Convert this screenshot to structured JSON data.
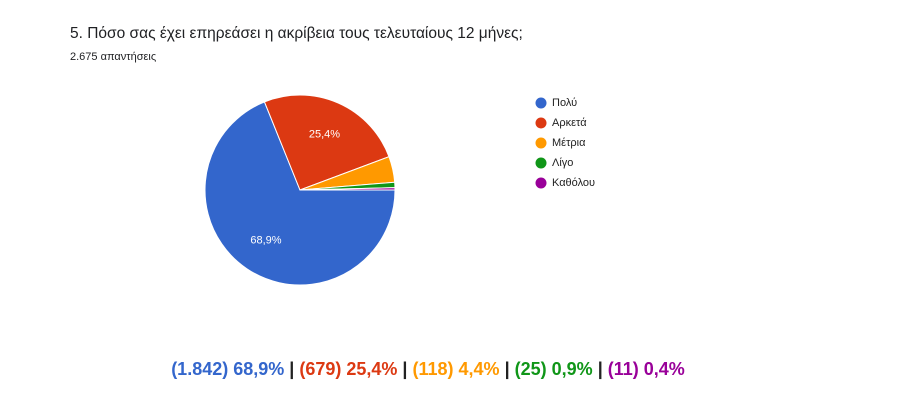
{
  "chart_data": {
    "type": "pie",
    "title": "5. Πόσο σας έχει επηρεάσει η ακρίβεια τους τελευταίους 12 μήνες;",
    "subtitle": "2.675 απαντήσεις",
    "categories": [
      "Πολύ",
      "Αρκετά",
      "Μέτρια",
      "Λίγο",
      "Καθόλου"
    ],
    "values": [
      68.9,
      25.4,
      4.4,
      0.9,
      0.4
    ],
    "value_labels": [
      "68,9%",
      "25,4%",
      null,
      null,
      null
    ],
    "colors": [
      "#3366cc",
      "#dc3912",
      "#ff9900",
      "#109618",
      "#990099"
    ],
    "legend": "right",
    "summary": [
      {
        "text": "(1.842) 68,9%",
        "color": "#3366cc"
      },
      {
        "text": "|",
        "color": "#222222"
      },
      {
        "text": "(679) 25,4%",
        "color": "#dc3912"
      },
      {
        "text": "|",
        "color": "#222222"
      },
      {
        "text": "(118) 4,4%",
        "color": "#ff9900"
      },
      {
        "text": "|",
        "color": "#222222"
      },
      {
        "text": "(25) 0,9%",
        "color": "#109618"
      },
      {
        "text": "|",
        "color": "#222222"
      },
      {
        "text": "(11) 0,4%",
        "color": "#990099"
      }
    ]
  }
}
